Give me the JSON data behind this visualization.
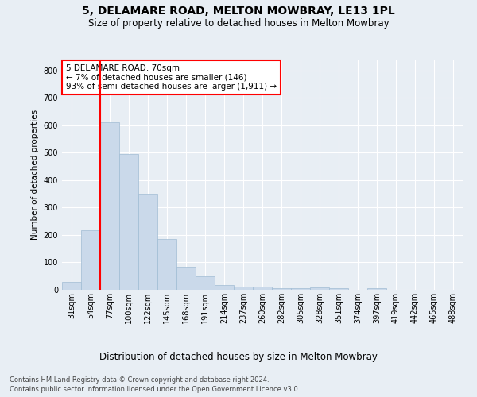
{
  "title": "5, DELAMARE ROAD, MELTON MOWBRAY, LE13 1PL",
  "subtitle": "Size of property relative to detached houses in Melton Mowbray",
  "xlabel": "Distribution of detached houses by size in Melton Mowbray",
  "ylabel": "Number of detached properties",
  "categories": [
    "31sqm",
    "54sqm",
    "77sqm",
    "100sqm",
    "122sqm",
    "145sqm",
    "168sqm",
    "191sqm",
    "214sqm",
    "237sqm",
    "260sqm",
    "282sqm",
    "305sqm",
    "328sqm",
    "351sqm",
    "374sqm",
    "397sqm",
    "419sqm",
    "442sqm",
    "465sqm",
    "488sqm"
  ],
  "values": [
    30,
    218,
    610,
    495,
    350,
    185,
    83,
    50,
    18,
    13,
    13,
    7,
    5,
    8,
    5,
    0,
    5,
    0,
    0,
    0,
    0
  ],
  "bar_color": "#cad9ea",
  "bar_edge_color": "#a0bcd4",
  "annotation_text": "5 DELAMARE ROAD: 70sqm\n← 7% of detached houses are smaller (146)\n93% of semi-detached houses are larger (1,911) →",
  "annotation_box_color": "white",
  "annotation_box_edge_color": "red",
  "vline_color": "red",
  "ylim": [
    0,
    840
  ],
  "yticks": [
    0,
    100,
    200,
    300,
    400,
    500,
    600,
    700,
    800
  ],
  "footer_line1": "Contains HM Land Registry data © Crown copyright and database right 2024.",
  "footer_line2": "Contains public sector information licensed under the Open Government Licence v3.0.",
  "bg_color": "#e8eef4",
  "plot_bg_color": "#e8eef4",
  "grid_color": "white",
  "title_fontsize": 10,
  "subtitle_fontsize": 8.5,
  "tick_fontsize": 7,
  "xlabel_fontsize": 8.5,
  "ylabel_fontsize": 7.5,
  "footer_fontsize": 6.0,
  "annotation_fontsize": 7.5
}
